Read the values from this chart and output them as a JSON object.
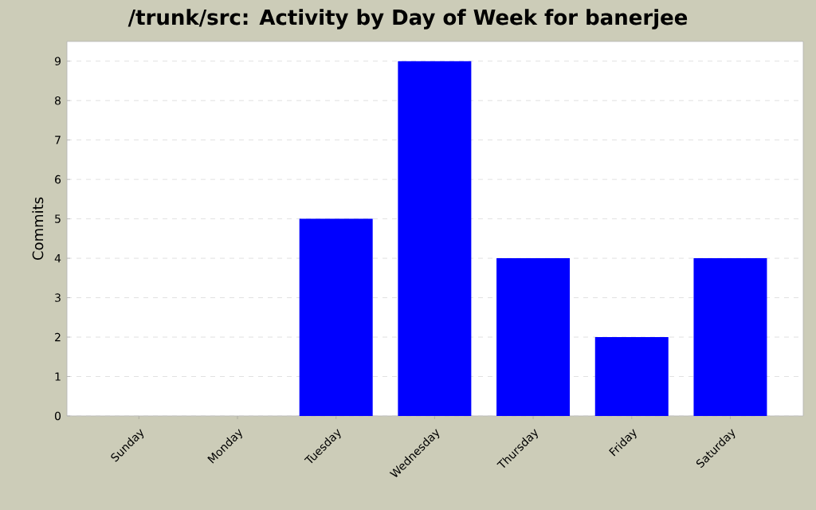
{
  "chart_data": {
    "type": "bar",
    "title": "/trunk/src: Activity by Day of Week for banerjee",
    "ylabel": "Commits",
    "categories": [
      "Sunday",
      "Monday",
      "Tuesday",
      "Wednesday",
      "Thursday",
      "Friday",
      "Saturday"
    ],
    "values": [
      0,
      0,
      5,
      9,
      4,
      2,
      4
    ],
    "color": "#0000ff",
    "ylim": [
      0,
      9.5
    ],
    "yticks": [
      0,
      1,
      2,
      3,
      4,
      5,
      6,
      7,
      8,
      9
    ],
    "grid": "y"
  }
}
